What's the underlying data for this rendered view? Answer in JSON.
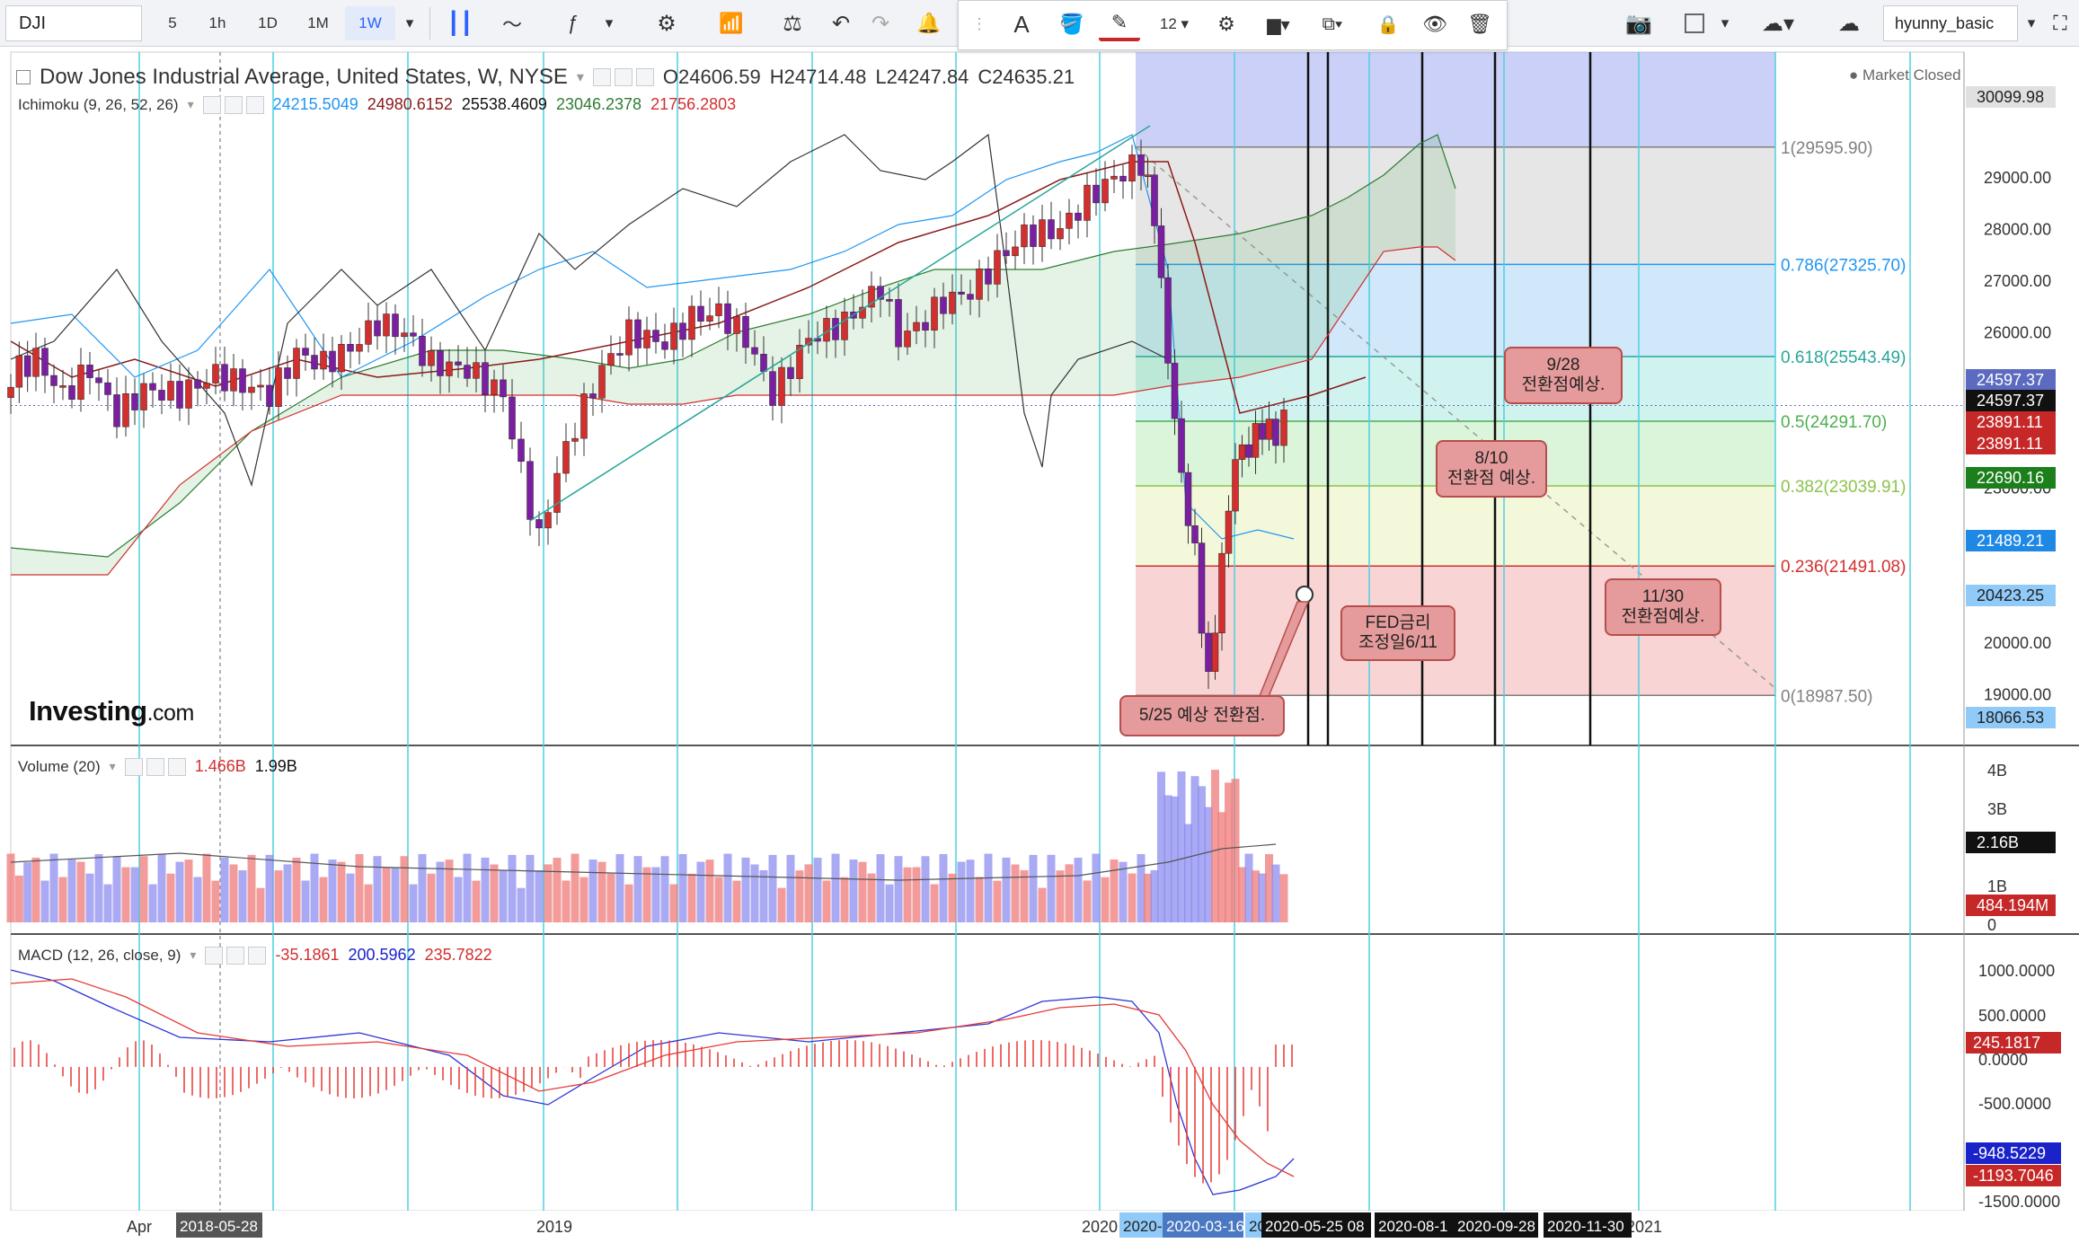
{
  "toolbar": {
    "symbol": "DJI",
    "intervals": [
      "5",
      "1h",
      "1D",
      "1M",
      "1W"
    ],
    "active_interval": "1W",
    "font_size": "12",
    "user": "hyunny_basic"
  },
  "header": {
    "title": "Dow Jones Industrial Average, United States, W, NYSE",
    "ohlc": [
      "O24606.59",
      "H24714.48",
      "L24247.84",
      "C24635.21"
    ],
    "market_status": "Market Closed"
  },
  "ichimoku": {
    "label": "Ichimoku (9, 26, 52, 26)",
    "values": [
      "24215.5049",
      "24980.6152",
      "25538.4609",
      "23046.2378",
      "21756.2803"
    ],
    "colors": [
      "#2196f3",
      "#8b1a1a",
      "#111111",
      "#2e7d32",
      "#d32f2f"
    ]
  },
  "volume": {
    "label": "Volume (20)",
    "values": [
      "1.466B",
      "1.99B"
    ],
    "axis": [
      "4B",
      "3B",
      "2B",
      "1B",
      "0"
    ],
    "tags": [
      "2.16B",
      "484.194M"
    ]
  },
  "macd": {
    "label": "MACD (12, 26, close, 9)",
    "values": [
      "-35.1861",
      "200.5962",
      "235.7822"
    ],
    "axis": [
      "1000.0000",
      "500.0000",
      "0.0000",
      "-500.0000",
      "-1000.0000",
      "-1500.0000"
    ],
    "tags": [
      "245.1817",
      "-948.5229",
      "-1193.7046"
    ]
  },
  "price_axis": {
    "labels": [
      "29000.00",
      "28000.00",
      "27000.00",
      "26000.00",
      "25000.00",
      "23000.00",
      "22000.00",
      "21000.00",
      "20000.00",
      "19000.00"
    ],
    "tags": [
      "30099.98",
      "24597.37",
      "24597.37",
      "23891.11",
      "23891.11",
      "22690.16",
      "21489.21",
      "20423.25",
      "18066.53"
    ]
  },
  "fib_levels": [
    {
      "label": "1(29595.90)",
      "value": 29595.9,
      "color": "#808080"
    },
    {
      "label": "0.786(27325.70)",
      "value": 27325.7,
      "color": "#2196f3"
    },
    {
      "label": "0.618(25543.49)",
      "value": 25543.49,
      "color": "#26a69a"
    },
    {
      "label": "0.5(24291.70)",
      "value": 24291.7,
      "color": "#4caf50"
    },
    {
      "label": "0.382(23039.91)",
      "value": 23039.91,
      "color": "#8bc34a"
    },
    {
      "label": "0.236(21491.08)",
      "value": 21491.08,
      "color": "#d32f2f"
    },
    {
      "label": "0(18987.50)",
      "value": 18987.5,
      "color": "#808080"
    }
  ],
  "time_axis": [
    "Apr",
    "2019",
    "2020",
    "2021"
  ],
  "time_tags": [
    "2018-05-28",
    "2020-",
    "2020-03-16",
    "20",
    "2020-05-25 08",
    "2020-08-1",
    "2020-09-28",
    "2020-11-30"
  ],
  "callouts": {
    "c525": "5/25 예상 전환점.",
    "fed": "FED금리\n조정일6/11",
    "c810": "8/10\n전환점 예상.",
    "c928": "9/28\n전환점예상.",
    "c1130": "11/30\n전환점예상."
  },
  "branding": {
    "logo": "Investing",
    "logo_suffix": ".com"
  },
  "colors": {
    "up": "#d32f2f",
    "down": "#7b1fa2",
    "accent": "#2962ff",
    "cyan_lines": "#4dd0e1"
  }
}
